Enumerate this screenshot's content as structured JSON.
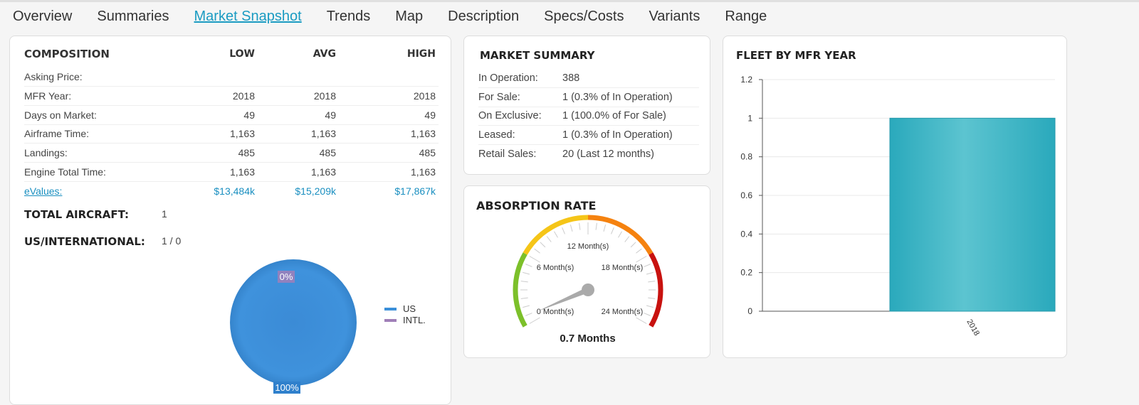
{
  "tabs": [
    {
      "label": "Overview"
    },
    {
      "label": "Summaries"
    },
    {
      "label": "Market Snapshot",
      "active": true
    },
    {
      "label": "Trends"
    },
    {
      "label": "Map"
    },
    {
      "label": "Description"
    },
    {
      "label": "Specs/Costs"
    },
    {
      "label": "Variants"
    },
    {
      "label": "Range"
    }
  ],
  "composition": {
    "title": "COMPOSITION",
    "columns": [
      "LOW",
      "AVG",
      "HIGH"
    ],
    "rows": [
      {
        "label": "Asking Price:",
        "values": [
          "",
          "",
          ""
        ]
      },
      {
        "label": "MFR Year:",
        "values": [
          "2018",
          "2018",
          "2018"
        ]
      },
      {
        "label": "Days on Market:",
        "values": [
          "49",
          "49",
          "49"
        ]
      },
      {
        "label": "Airframe Time:",
        "values": [
          "1,163",
          "1,163",
          "1,163"
        ]
      },
      {
        "label": "Landings:",
        "values": [
          "485",
          "485",
          "485"
        ]
      },
      {
        "label": "Engine Total Time:",
        "values": [
          "1,163",
          "1,163",
          "1,163"
        ]
      }
    ],
    "evalues": {
      "label": "eValues:",
      "values": [
        "$13,484k",
        "$15,209k",
        "$17,867k"
      ]
    },
    "total_aircraft_label": "TOTAL AIRCRAFT:",
    "total_aircraft": "1",
    "us_intl_label": "US/INTERNATIONAL:",
    "us_intl": "1 / 0"
  },
  "pie": {
    "slices": [
      {
        "name": "US",
        "value": 100,
        "label": "100%",
        "color": "#3b8fd9"
      },
      {
        "name": "INTL.",
        "value": 0,
        "label": "0%",
        "color": "#a07fb8"
      }
    ]
  },
  "market_summary": {
    "title": "MARKET SUMMARY",
    "rows": [
      {
        "label": "In Operation:",
        "value": "388"
      },
      {
        "label": "For Sale:",
        "value": "1 (0.3% of In Operation)"
      },
      {
        "label": "On Exclusive:",
        "value": "1 (100.0% of For Sale)"
      },
      {
        "label": "Leased:",
        "value": "1 (0.3% of In Operation)"
      },
      {
        "label": "Retail Sales:",
        "value": "20 (Last 12 months)"
      }
    ]
  },
  "absorption": {
    "title": "ABSORPTION RATE",
    "min": 0,
    "max": 24,
    "value": 0.7,
    "readout": "0.7 Months",
    "tick_labels": [
      "0 Month(s)",
      "6 Month(s)",
      "12 Month(s)",
      "18 Month(s)",
      "24 Month(s)"
    ],
    "bands": [
      {
        "from": 0,
        "to": 6,
        "color": "#7cc02a"
      },
      {
        "from": 6,
        "to": 12,
        "color": "#f5c518"
      },
      {
        "from": 12,
        "to": 18,
        "color": "#f5820f"
      },
      {
        "from": 18,
        "to": 24,
        "color": "#c8120f"
      }
    ]
  },
  "chart_data": {
    "type": "bar",
    "title": "FLEET BY MFR YEAR",
    "categories": [
      "2018"
    ],
    "values": [
      1
    ],
    "ylim": [
      0,
      1.2
    ],
    "yticks": [
      "0",
      "0.2",
      "0.4",
      "0.6",
      "0.8",
      "1",
      "1.2"
    ],
    "grid": true,
    "color": "#34b2c4"
  }
}
